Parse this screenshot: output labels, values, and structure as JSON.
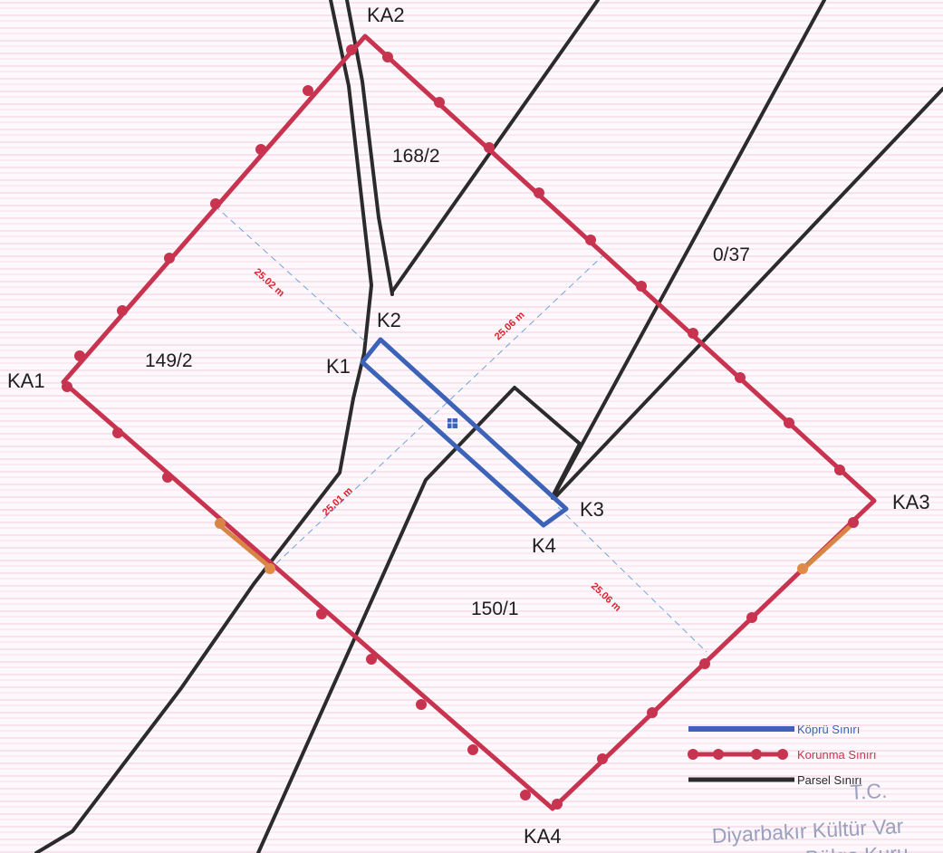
{
  "points": {
    "ka1": "KA1",
    "ka2": "KA2",
    "ka3": "KA3",
    "ka4": "KA4",
    "k1": "K1",
    "k2": "K2",
    "k3": "K3",
    "k4": "K4"
  },
  "parcels": {
    "p168_2": "168/2",
    "p0_37": "0/37",
    "p149_2": "149/2",
    "p150_1": "150/1"
  },
  "measurements": {
    "m1": "25.02 m",
    "m2": "25.06 m",
    "m3": "25.01 m",
    "m4": "25.06 m"
  },
  "legend": {
    "bridge": {
      "label": "Köprü Sınırı",
      "color": "#3d63b8"
    },
    "protection": {
      "label": "Korunma Sınırı",
      "color": "#c8344f"
    },
    "parcel": {
      "label": "Parsel Sınırı",
      "color": "#2b2b2b"
    }
  },
  "stamp": {
    "line1": "T.C.",
    "line2": "Diyarbakır Kültür Var",
    "line3": "Koruma Bölge Kuru"
  },
  "colors": {
    "protection_boundary": "#c8344f",
    "bridge_boundary": "#3d63b8",
    "parcel_boundary": "#2b2b2b",
    "measurement": "#e0202a",
    "guide_line": "#6fa3e0"
  }
}
